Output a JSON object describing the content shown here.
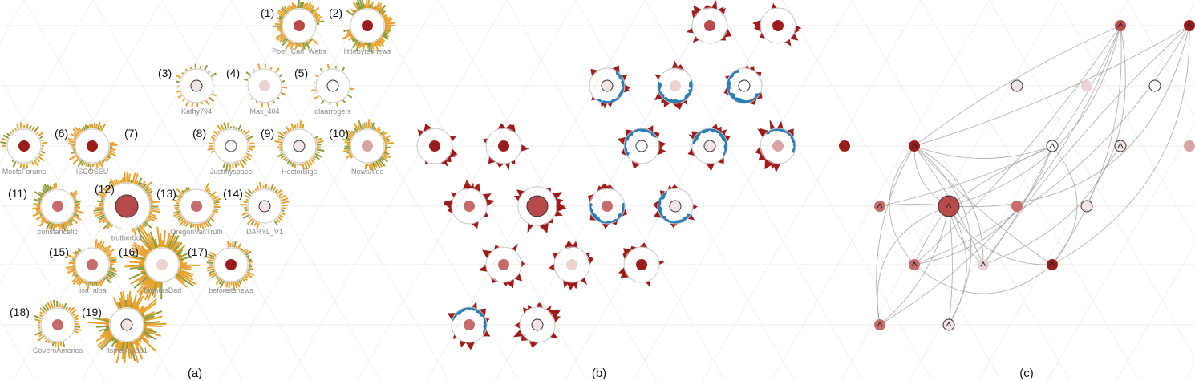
{
  "colors": {
    "background": "#ffffff",
    "grid": "#ececec",
    "ring": "#c8c8c8",
    "bar_orange": "#e8a02a",
    "bar_olive": "#8f9a3a",
    "spike_red": "#a01a1a",
    "spike_blue": "#2a7db5",
    "edge": "#9a9a9a",
    "node_outline": "#333333",
    "shades": {
      "dark": "#9b1c1c",
      "red": "#b84a4a",
      "mid": "#c66b6b",
      "light": "#d7a3a3",
      "pale": "#ecd2d2",
      "faint": "#f4e4e4",
      "white": "#ffffff"
    }
  },
  "panels": [
    {
      "id": "a",
      "caption": "(a)"
    },
    {
      "id": "b",
      "caption": "(b)"
    },
    {
      "id": "c",
      "caption": "(c)"
    }
  ],
  "users": [
    {
      "index": 1,
      "label": "(1)",
      "name": "Poet_Carl_Watts",
      "shade": "red",
      "size": 1.0,
      "activity": 0.7
    },
    {
      "index": 2,
      "label": "(2)",
      "name": "littlebytesnews",
      "shade": "dark",
      "size": 1.0,
      "activity": 0.8
    },
    {
      "index": 3,
      "label": "(3)",
      "name": "Kathy794",
      "shade": "faint",
      "size": 1.0,
      "activity": 0.15
    },
    {
      "index": 4,
      "label": "(4)",
      "name": "Max_404",
      "shade": "pale",
      "size": 1.0,
      "activity": 0.1
    },
    {
      "index": 5,
      "label": "(5)",
      "name": "dlaarrogers",
      "shade": "white",
      "size": 1.0,
      "activity": 0.05
    },
    {
      "index": 6,
      "label": "(6)",
      "name": "MecfsForums",
      "shade": "dark",
      "size": 1.0,
      "activity": 0.35
    },
    {
      "index": 7,
      "label": "(7)",
      "name": "ISCOSEU",
      "shade": "dark",
      "size": 1.0,
      "activity": 0.6
    },
    {
      "index": 8,
      "label": "(8)",
      "name": "Justmyspace",
      "shade": "white",
      "size": 1.0,
      "activity": 0.4
    },
    {
      "index": 9,
      "label": "(9)",
      "name": "HectorBigs",
      "shade": "faint",
      "size": 1.0,
      "activity": 0.45
    },
    {
      "index": 10,
      "label": "(10)",
      "name": "NewsAlds",
      "shade": "light",
      "size": 1.0,
      "activity": 0.65
    },
    {
      "index": 11,
      "label": "(11)",
      "name": "constancefic",
      "shade": "mid",
      "size": 1.0,
      "activity": 0.7
    },
    {
      "index": 12,
      "label": "(12)",
      "name": "trutherbot",
      "shade": "red",
      "size": 1.8,
      "activity": 0.85
    },
    {
      "index": 13,
      "label": "(13)",
      "name": "OregonVacTruth",
      "shade": "mid",
      "size": 1.0,
      "activity": 0.55
    },
    {
      "index": 14,
      "label": "(14)",
      "name": "DARYL_V1",
      "shade": "faint",
      "size": 1.0,
      "activity": 0.4
    },
    {
      "index": 15,
      "label": "(15)",
      "name": "lisa_alba",
      "shade": "mid",
      "size": 1.0,
      "activity": 0.65
    },
    {
      "index": 16,
      "label": "(16)",
      "name": "TannersDad",
      "shade": "pale",
      "size": 1.0,
      "activity": 0.95
    },
    {
      "index": 17,
      "label": "(17)",
      "name": "beforeitsnews",
      "shade": "dark",
      "size": 1.0,
      "activity": 0.55
    },
    {
      "index": 18,
      "label": "(18)",
      "name": "GovernAmerica",
      "shade": "mid",
      "size": 1.0,
      "activity": 0.45
    },
    {
      "index": 19,
      "label": "(19)",
      "name": "itsmepanda1",
      "shade": "faint",
      "size": 1.0,
      "activity": 1.0
    }
  ],
  "panel_b_glyphs": [
    {
      "user": 1,
      "red": 0.55,
      "blue": 0.0
    },
    {
      "user": 2,
      "red": 0.45,
      "blue": 0.0
    },
    {
      "user": 3,
      "red": 0.3,
      "blue": 0.45
    },
    {
      "user": 4,
      "red": 0.4,
      "blue": 0.6
    },
    {
      "user": 5,
      "red": 0.15,
      "blue": 0.7
    },
    {
      "user": 6,
      "red": 0.45,
      "blue": 0.0
    },
    {
      "user": 7,
      "red": 0.4,
      "blue": 0.0
    },
    {
      "user": 8,
      "red": 0.55,
      "blue": 0.45
    },
    {
      "user": 9,
      "red": 0.4,
      "blue": 0.6
    },
    {
      "user": 10,
      "red": 0.65,
      "blue": 0.3
    },
    {
      "user": 11,
      "red": 0.55,
      "blue": 0.0
    },
    {
      "user": 12,
      "red": 0.6,
      "blue": 0.0
    },
    {
      "user": 13,
      "red": 0.4,
      "blue": 0.55
    },
    {
      "user": 14,
      "red": 0.35,
      "blue": 0.6
    },
    {
      "user": 15,
      "red": 0.5,
      "blue": 0.0
    },
    {
      "user": 16,
      "red": 0.45,
      "blue": 0.0
    },
    {
      "user": 17,
      "red": 0.4,
      "blue": 0.0
    },
    {
      "user": 18,
      "red": 0.4,
      "blue": 0.55
    },
    {
      "user": 19,
      "red": 0.7,
      "blue": 0.0
    }
  ],
  "panel_c_nodes": [
    {
      "user": 1,
      "arrow": true
    },
    {
      "user": 2,
      "arrow": true
    },
    {
      "user": 3,
      "arrow": false
    },
    {
      "user": 4,
      "arrow": false
    },
    {
      "user": 5,
      "arrow": false
    },
    {
      "user": 6,
      "arrow": false
    },
    {
      "user": 7,
      "arrow": true
    },
    {
      "user": 8,
      "arrow": true
    },
    {
      "user": 9,
      "arrow": true
    },
    {
      "user": 10,
      "arrow": false
    },
    {
      "user": 11,
      "arrow": true
    },
    {
      "user": 12,
      "arrow": true
    },
    {
      "user": 13,
      "arrow": false
    },
    {
      "user": 14,
      "arrow": false
    },
    {
      "user": 15,
      "arrow": true
    },
    {
      "user": 16,
      "arrow": true
    },
    {
      "user": 17,
      "arrow": true
    },
    {
      "user": 18,
      "arrow": true
    },
    {
      "user": 19,
      "arrow": true
    }
  ],
  "panel_c_edges": [
    [
      7,
      1
    ],
    [
      7,
      2
    ],
    [
      7,
      8
    ],
    [
      7,
      12
    ],
    [
      7,
      15
    ],
    [
      7,
      16
    ],
    [
      7,
      17
    ],
    [
      7,
      18
    ],
    [
      12,
      1
    ],
    [
      12,
      2
    ],
    [
      12,
      8
    ],
    [
      12,
      15
    ],
    [
      12,
      16
    ],
    [
      12,
      17
    ],
    [
      12,
      18
    ],
    [
      12,
      19
    ],
    [
      15,
      1
    ],
    [
      15,
      2
    ],
    [
      15,
      8
    ],
    [
      16,
      1
    ],
    [
      16,
      2
    ],
    [
      16,
      8
    ],
    [
      17,
      1
    ],
    [
      17,
      2
    ],
    [
      17,
      8
    ],
    [
      11,
      12
    ],
    [
      11,
      8
    ],
    [
      18,
      12
    ],
    [
      19,
      12
    ],
    [
      19,
      7
    ],
    [
      14,
      9
    ],
    [
      8,
      1
    ],
    [
      18,
      1
    ],
    [
      16,
      7
    ],
    [
      15,
      17
    ]
  ]
}
